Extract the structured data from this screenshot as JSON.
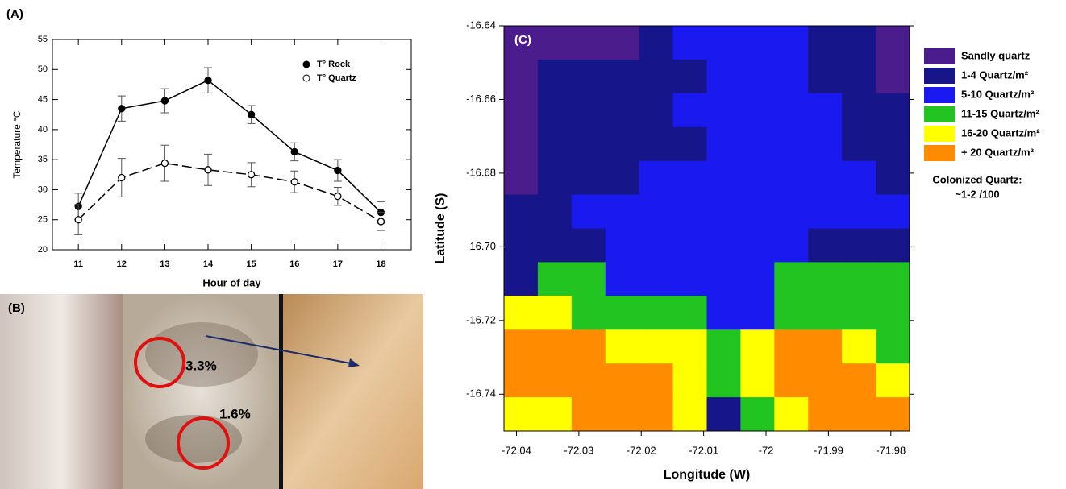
{
  "chart_data": [
    {
      "type": "line",
      "label": "(A)",
      "xlabel": "Hour of day",
      "ylabel": "Temperature °C",
      "x": [
        11,
        12,
        13,
        14,
        15,
        16,
        17,
        18
      ],
      "xlim": [
        10.4,
        18.7
      ],
      "xticks": [
        11,
        12,
        13,
        14,
        15,
        16,
        17,
        18
      ],
      "ylim": [
        20,
        55
      ],
      "yticks": [
        20,
        25,
        30,
        35,
        40,
        45,
        50,
        55
      ],
      "legend": "upper right",
      "series": [
        {
          "name": "T° Rock",
          "color": "#000000",
          "dashed": false,
          "filled": true,
          "values": [
            27.2,
            43.5,
            44.8,
            48.2,
            42.5,
            36.3,
            33.2,
            26.2
          ],
          "errors": [
            2.2,
            2.1,
            2.0,
            2.1,
            1.5,
            1.5,
            1.8,
            1.8
          ]
        },
        {
          "name": "T° Quartz",
          "color": "#000000",
          "dashed": true,
          "filled": false,
          "values": [
            25.0,
            32.0,
            34.4,
            33.3,
            32.5,
            31.3,
            28.9,
            24.7
          ],
          "errors": [
            2.5,
            3.2,
            3.0,
            2.6,
            2.0,
            1.8,
            1.5,
            1.5
          ]
        }
      ]
    },
    {
      "type": "contour",
      "label": "(C)",
      "xlabel": "Longitude (W)",
      "ylabel": "Latitude (S)",
      "xlim": [
        -72.042,
        -71.977
      ],
      "xticks": [
        -72.04,
        -72.03,
        -72.02,
        -72.01,
        -72.0,
        {
          "value": -71.99,
          "label": "-71.99"
        },
        {
          "value": -71.98,
          "label": "-71.98"
        }
      ],
      "ylim": [
        -16.75,
        -16.64
      ],
      "yticks": [
        {
          "value": -16.64,
          "label": "-16.64"
        },
        {
          "value": -16.66,
          "label": "-16.66"
        },
        {
          "value": -16.68,
          "label": "-16.68"
        },
        {
          "value": -16.7,
          "label": "-16.70"
        },
        {
          "value": -16.72,
          "label": "-16.72"
        },
        {
          "value": -16.74,
          "label": "-16.74"
        }
      ],
      "legend": [
        {
          "name": "Sandly quartz",
          "color": "#4a1c8c"
        },
        {
          "name": "1-4 Quartz/m²",
          "color": "#16168a"
        },
        {
          "name": "5-10 Quartz/m²",
          "color": "#1a1af0"
        },
        {
          "name": "11-15 Quartz/m²",
          "color": "#22c422"
        },
        {
          "name": "16-20 Quartz/m²",
          "color": "#ffff00"
        },
        {
          "name": "+ 20 Quartz/m²",
          "color": "#ff8c00"
        }
      ],
      "annotation": [
        "Colonized Quartz:",
        "~1-2   /100"
      ],
      "z": [
        [
          0,
          0,
          0,
          0,
          1,
          2,
          2,
          2,
          2,
          1,
          1,
          0
        ],
        [
          0,
          1,
          1,
          1,
          1,
          1,
          2,
          2,
          2,
          1,
          1,
          0
        ],
        [
          0,
          1,
          1,
          1,
          1,
          2,
          2,
          2,
          2,
          2,
          1,
          1
        ],
        [
          0,
          1,
          1,
          1,
          1,
          1,
          2,
          2,
          2,
          2,
          1,
          1
        ],
        [
          0,
          1,
          1,
          1,
          2,
          2,
          2,
          2,
          2,
          2,
          2,
          1
        ],
        [
          1,
          1,
          2,
          2,
          2,
          2,
          2,
          2,
          2,
          2,
          2,
          2
        ],
        [
          1,
          1,
          1,
          2,
          2,
          2,
          2,
          2,
          2,
          1,
          1,
          1
        ],
        [
          1,
          3,
          3,
          2,
          2,
          2,
          2,
          2,
          3,
          3,
          3,
          3
        ],
        [
          4,
          4,
          3,
          3,
          3,
          3,
          2,
          2,
          3,
          3,
          3,
          3
        ],
        [
          5,
          5,
          5,
          4,
          4,
          4,
          3,
          4,
          5,
          5,
          4,
          3
        ],
        [
          5,
          5,
          5,
          5,
          5,
          4,
          3,
          4,
          5,
          5,
          5,
          4
        ],
        [
          4,
          4,
          5,
          5,
          5,
          4,
          1,
          3,
          4,
          5,
          5,
          5
        ]
      ]
    }
  ],
  "panel_b": {
    "label": "(B)",
    "annotations": [
      "3.3%",
      "1.6%"
    ]
  }
}
